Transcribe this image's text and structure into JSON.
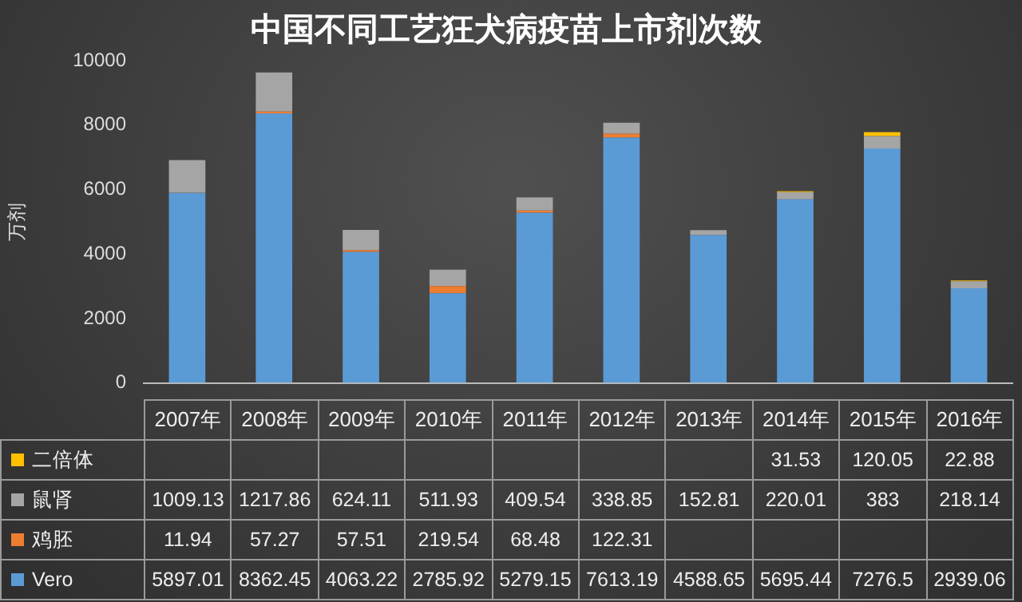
{
  "chart_data": {
    "type": "bar",
    "title": "中国不同工艺狂犬病疫苗上市剂次数",
    "ylabel": "万剂",
    "categories": [
      "2007年",
      "2008年",
      "2009年",
      "2010年",
      "2011年",
      "2012年",
      "2013年",
      "2014年",
      "2015年",
      "2016年"
    ],
    "stacked": true,
    "ylim": [
      0,
      10000
    ],
    "yticks": [
      0,
      2000,
      4000,
      6000,
      8000,
      10000
    ],
    "grid": false,
    "legend": "bottom",
    "data_labels": true,
    "series": [
      {
        "name": "Vero",
        "color": "#5b9bd5",
        "values": [
          5897.01,
          8362.45,
          4063.22,
          2785.92,
          5279.15,
          7613.19,
          4588.65,
          5695.44,
          7276.5,
          2939.06
        ]
      },
      {
        "name": "鸡胚",
        "color": "#ed7d31",
        "values": [
          11.94,
          57.27,
          57.51,
          219.54,
          68.48,
          122.31,
          null,
          null,
          null,
          null
        ]
      },
      {
        "name": "鼠肾",
        "color": "#a5a5a5",
        "values": [
          1009.13,
          1217.86,
          624.11,
          511.93,
          409.54,
          338.85,
          152.81,
          220.01,
          383,
          218.14
        ]
      },
      {
        "name": "二倍体",
        "color": "#ffc000",
        "values": [
          null,
          null,
          null,
          null,
          null,
          null,
          null,
          31.53,
          120.05,
          22.88
        ]
      }
    ]
  }
}
